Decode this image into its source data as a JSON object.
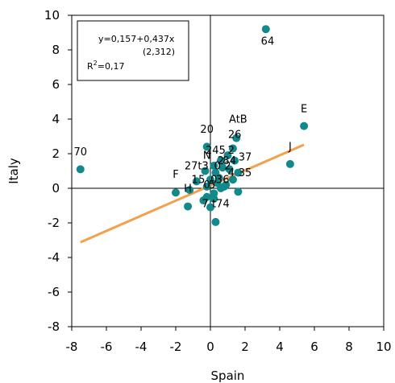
{
  "chart_data": {
    "type": "scatter",
    "xlabel": "Spain",
    "ylabel": "Italy",
    "xlim": [
      -8,
      10
    ],
    "ylim": [
      -8,
      10
    ],
    "xticks": [
      -8,
      -6,
      -4,
      -2,
      0,
      2,
      4,
      6,
      8,
      10
    ],
    "yticks": [
      -8,
      -6,
      -4,
      -2,
      0,
      2,
      4,
      6,
      8,
      10
    ],
    "point_color": "#12898a",
    "line_color": "#f2a24d",
    "regression": {
      "intercept": 0.157,
      "slope": 0.437,
      "x_range": [
        -7.5,
        5.4
      ],
      "equation": "y=0,157+0,437x",
      "t_stat": "(2,312)",
      "r2_prefix": "R",
      "r2_sup": "2",
      "r2_value": "=0,17"
    },
    "points": [
      {
        "x": 3.2,
        "y": 9.2
      },
      {
        "x": 5.4,
        "y": 3.6
      },
      {
        "x": 4.6,
        "y": 1.4
      },
      {
        "x": -7.5,
        "y": 1.1
      },
      {
        "x": -0.2,
        "y": 2.4
      },
      {
        "x": 1.5,
        "y": 2.9
      },
      {
        "x": 1.3,
        "y": 2.3
      },
      {
        "x": 1.0,
        "y": 1.9
      },
      {
        "x": 0.6,
        "y": 1.6
      },
      {
        "x": 1.4,
        "y": 1.6
      },
      {
        "x": 0.2,
        "y": 1.3
      },
      {
        "x": 0.7,
        "y": 1.2
      },
      {
        "x": 1.1,
        "y": 1.1
      },
      {
        "x": -0.3,
        "y": 1.0
      },
      {
        "x": 0.3,
        "y": 0.9
      },
      {
        "x": 1.6,
        "y": 0.9
      },
      {
        "x": 0.5,
        "y": 0.6
      },
      {
        "x": 0.0,
        "y": 0.5
      },
      {
        "x": 1.3,
        "y": 0.5
      },
      {
        "x": -0.8,
        "y": 0.4
      },
      {
        "x": 0.4,
        "y": 0.3
      },
      {
        "x": 0.9,
        "y": 0.2
      },
      {
        "x": -0.2,
        "y": 0.1
      },
      {
        "x": 0.6,
        "y": 0.0
      },
      {
        "x": -1.2,
        "y": -0.1
      },
      {
        "x": 0.8,
        "y": 0.1
      },
      {
        "x": 1.6,
        "y": -0.2
      },
      {
        "x": -2.0,
        "y": -0.25
      },
      {
        "x": 0.2,
        "y": -0.3
      },
      {
        "x": -0.2,
        "y": -0.5
      },
      {
        "x": 0.2,
        "y": -0.6
      },
      {
        "x": -0.4,
        "y": -0.7
      },
      {
        "x": -1.3,
        "y": -1.05
      },
      {
        "x": 0.0,
        "y": -1.1
      },
      {
        "x": 0.3,
        "y": -1.95
      }
    ],
    "labels": [
      {
        "text": "64",
        "x": 3.3,
        "y": 8.3
      },
      {
        "text": "E",
        "x": 5.4,
        "y": 4.4
      },
      {
        "text": "J",
        "x": 4.6,
        "y": 2.2
      },
      {
        "text": "70",
        "x": -7.5,
        "y": 1.9
      },
      {
        "text": "AtB",
        "x": 1.6,
        "y": 3.8
      },
      {
        "text": "26",
        "x": 1.4,
        "y": 2.9
      },
      {
        "text": "20",
        "x": -0.2,
        "y": 3.2
      },
      {
        "text": "245",
        "x": 0.3,
        "y": 2.0
      },
      {
        "text": "2",
        "x": 1.2,
        "y": 2.0
      },
      {
        "text": "N",
        "x": -0.2,
        "y": 1.7
      },
      {
        "text": "2",
        "x": 0.6,
        "y": 1.4
      },
      {
        "text": "8",
        "x": 0.9,
        "y": 1.4
      },
      {
        "text": "4",
        "x": 1.3,
        "y": 1.4
      },
      {
        "text": "37",
        "x": 2.0,
        "y": 1.6
      },
      {
        "text": "27t3",
        "x": -0.8,
        "y": 1.1
      },
      {
        "text": "0",
        "x": 0.4,
        "y": 1.1
      },
      {
        "text": "2",
        "x": 1.0,
        "y": 1.1
      },
      {
        "text": "F",
        "x": -2.0,
        "y": 0.6
      },
      {
        "text": "1",
        "x": -0.9,
        "y": 0.3
      },
      {
        "text": "5",
        "x": -0.5,
        "y": 0.3
      },
      {
        "text": "0",
        "x": 0.2,
        "y": 0.3
      },
      {
        "text": "3",
        "x": 0.5,
        "y": 0.3
      },
      {
        "text": "6",
        "x": 0.9,
        "y": 0.3
      },
      {
        "text": "0",
        "x": -0.2,
        "y": 0.0
      },
      {
        "text": "5",
        "x": 0.1,
        "y": 0.0
      },
      {
        "text": "4",
        "x": 1.2,
        "y": 0.7
      },
      {
        "text": "35",
        "x": 2.0,
        "y": 0.7
      },
      {
        "text": "H",
        "x": -1.3,
        "y": -0.2
      },
      {
        "text": "7",
        "x": -0.3,
        "y": -1.1
      },
      {
        "text": "t74",
        "x": 0.6,
        "y": -1.1
      }
    ]
  }
}
